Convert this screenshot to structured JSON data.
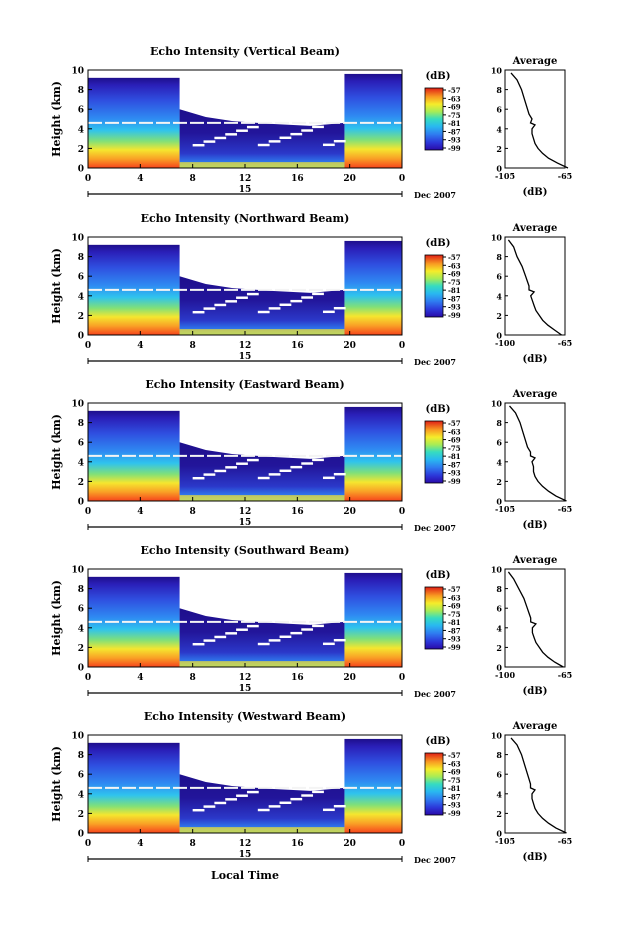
{
  "figure": {
    "xlabel": "Local Time",
    "date_label": "15",
    "month_label": "Dec 2007"
  },
  "chart_data": [
    {
      "type": "heatmap",
      "title": "Echo Intensity (Vertical Beam)",
      "ylabel": "Height (km)",
      "xticks": [
        "0",
        "4",
        "8",
        "12",
        "16",
        "20",
        "0"
      ],
      "yticks": [
        "0",
        "2",
        "4",
        "6",
        "8",
        "10"
      ],
      "xlim": [
        0,
        24
      ],
      "ylim": [
        0,
        10
      ],
      "colorbar": {
        "label": "(dB)",
        "ticks": [
          "-57",
          "-63",
          "-69",
          "-75",
          "-81",
          "-87",
          "-93",
          "-99"
        ]
      },
      "profile": {
        "title": "Average",
        "xlabel": "(dB)",
        "xticks": [
          "-105",
          "-65"
        ],
        "xlim": [
          -105,
          -65
        ],
        "yticks": [
          "0",
          "2",
          "4",
          "6",
          "8",
          "10"
        ],
        "ylim": [
          0,
          10
        ],
        "points": [
          [
            -63,
            0
          ],
          [
            -70,
            0.5
          ],
          [
            -76,
            1
          ],
          [
            -80,
            1.5
          ],
          [
            -83,
            2
          ],
          [
            -85,
            2.5
          ],
          [
            -86,
            3
          ],
          [
            -87,
            3.5
          ],
          [
            -87,
            4
          ],
          [
            -85,
            4.4
          ],
          [
            -88,
            4.6
          ],
          [
            -87,
            5
          ],
          [
            -89,
            5.5
          ],
          [
            -90,
            6
          ],
          [
            -92,
            7
          ],
          [
            -94,
            8
          ],
          [
            -97,
            9
          ],
          [
            -101,
            9.7
          ]
        ]
      }
    },
    {
      "type": "heatmap",
      "title": "Echo Intensity (Northward Beam)",
      "ylabel": "Height (km)",
      "xticks": [
        "0",
        "4",
        "8",
        "12",
        "16",
        "20",
        "0"
      ],
      "yticks": [
        "0",
        "2",
        "4",
        "6",
        "8",
        "10"
      ],
      "xlim": [
        0,
        24
      ],
      "ylim": [
        0,
        10
      ],
      "colorbar": {
        "label": "(dB)",
        "ticks": [
          "-57",
          "-63",
          "-69",
          "-75",
          "-81",
          "-87",
          "-93",
          "-99"
        ]
      },
      "profile": {
        "title": "Average",
        "xlabel": "(dB)",
        "xticks": [
          "-100",
          "-65"
        ],
        "xlim": [
          -100,
          -65
        ],
        "yticks": [
          "0",
          "2",
          "4",
          "6",
          "8",
          "10"
        ],
        "ylim": [
          0,
          10
        ],
        "points": [
          [
            -67,
            0
          ],
          [
            -71,
            0.5
          ],
          [
            -75,
            1
          ],
          [
            -78,
            1.5
          ],
          [
            -80,
            2
          ],
          [
            -82,
            2.5
          ],
          [
            -83,
            3
          ],
          [
            -84,
            3.5
          ],
          [
            -85,
            4
          ],
          [
            -83,
            4.4
          ],
          [
            -86,
            4.6
          ],
          [
            -86,
            5
          ],
          [
            -87,
            5.5
          ],
          [
            -88,
            6
          ],
          [
            -90,
            7
          ],
          [
            -93,
            8
          ],
          [
            -95,
            9
          ],
          [
            -98,
            9.7
          ]
        ]
      }
    },
    {
      "type": "heatmap",
      "title": "Echo Intensity (Eastward Beam)",
      "ylabel": "Height (km)",
      "xticks": [
        "0",
        "4",
        "8",
        "12",
        "16",
        "20",
        "0"
      ],
      "yticks": [
        "0",
        "2",
        "4",
        "6",
        "8",
        "10"
      ],
      "xlim": [
        0,
        24
      ],
      "ylim": [
        0,
        10
      ],
      "colorbar": {
        "label": "(dB)",
        "ticks": [
          "-57",
          "-63",
          "-69",
          "-75",
          "-81",
          "-87",
          "-93",
          "-99"
        ]
      },
      "profile": {
        "title": "Average",
        "xlabel": "(dB)",
        "xticks": [
          "-105",
          "-65"
        ],
        "xlim": [
          -105,
          -65
        ],
        "yticks": [
          "0",
          "2",
          "4",
          "6",
          "8",
          "10"
        ],
        "ylim": [
          0,
          10
        ],
        "points": [
          [
            -64,
            0
          ],
          [
            -71,
            0.5
          ],
          [
            -76,
            1
          ],
          [
            -80,
            1.5
          ],
          [
            -83,
            2
          ],
          [
            -85,
            2.5
          ],
          [
            -86,
            3
          ],
          [
            -86,
            3.5
          ],
          [
            -87,
            4
          ],
          [
            -85,
            4.4
          ],
          [
            -88,
            4.6
          ],
          [
            -88,
            5
          ],
          [
            -90,
            5.5
          ],
          [
            -91,
            6
          ],
          [
            -93,
            7
          ],
          [
            -95,
            8
          ],
          [
            -98,
            9
          ],
          [
            -102,
            9.7
          ]
        ]
      }
    },
    {
      "type": "heatmap",
      "title": "Echo Intensity (Southward Beam)",
      "ylabel": "Height (km)",
      "xticks": [
        "0",
        "4",
        "8",
        "12",
        "16",
        "20",
        "0"
      ],
      "yticks": [
        "0",
        "2",
        "4",
        "6",
        "8",
        "10"
      ],
      "xlim": [
        0,
        24
      ],
      "ylim": [
        0,
        10
      ],
      "colorbar": {
        "label": "(dB)",
        "ticks": [
          "-57",
          "-63",
          "-69",
          "-75",
          "-81",
          "-87",
          "-93",
          "-99"
        ]
      },
      "profile": {
        "title": "Average",
        "xlabel": "(dB)",
        "xticks": [
          "-100",
          "-65"
        ],
        "xlim": [
          -100,
          -65
        ],
        "yticks": [
          "0",
          "2",
          "4",
          "6",
          "8",
          "10"
        ],
        "ylim": [
          0,
          10
        ],
        "points": [
          [
            -66,
            0
          ],
          [
            -71,
            0.5
          ],
          [
            -75,
            1
          ],
          [
            -78,
            1.5
          ],
          [
            -80,
            2
          ],
          [
            -82,
            2.5
          ],
          [
            -83,
            3
          ],
          [
            -84,
            3.5
          ],
          [
            -84,
            4
          ],
          [
            -82,
            4.4
          ],
          [
            -85,
            4.6
          ],
          [
            -85,
            5
          ],
          [
            -86,
            5.5
          ],
          [
            -87,
            6
          ],
          [
            -89,
            7
          ],
          [
            -92,
            8
          ],
          [
            -95,
            9
          ],
          [
            -98,
            9.7
          ]
        ]
      }
    },
    {
      "type": "heatmap",
      "title": "Echo Intensity (Westward Beam)",
      "ylabel": "Height (km)",
      "xticks": [
        "0",
        "4",
        "8",
        "12",
        "16",
        "20",
        "0"
      ],
      "yticks": [
        "0",
        "2",
        "4",
        "6",
        "8",
        "10"
      ],
      "xlim": [
        0,
        24
      ],
      "ylim": [
        0,
        10
      ],
      "colorbar": {
        "label": "(dB)",
        "ticks": [
          "-57",
          "-63",
          "-69",
          "-75",
          "-81",
          "-87",
          "-93",
          "-99"
        ]
      },
      "profile": {
        "title": "Average",
        "xlabel": "(dB)",
        "xticks": [
          "-105",
          "-65"
        ],
        "xlim": [
          -105,
          -65
        ],
        "yticks": [
          "0",
          "2",
          "4",
          "6",
          "8",
          "10"
        ],
        "ylim": [
          0,
          10
        ],
        "points": [
          [
            -64,
            0
          ],
          [
            -71,
            0.5
          ],
          [
            -76,
            1
          ],
          [
            -80,
            1.5
          ],
          [
            -83,
            2
          ],
          [
            -85,
            2.5
          ],
          [
            -86,
            3
          ],
          [
            -87,
            3.5
          ],
          [
            -87,
            4
          ],
          [
            -85,
            4.4
          ],
          [
            -88,
            4.6
          ],
          [
            -88,
            5
          ],
          [
            -89,
            5.5
          ],
          [
            -90,
            6
          ],
          [
            -92,
            7
          ],
          [
            -94,
            8
          ],
          [
            -97,
            9
          ],
          [
            -101,
            9.7
          ]
        ]
      }
    }
  ]
}
